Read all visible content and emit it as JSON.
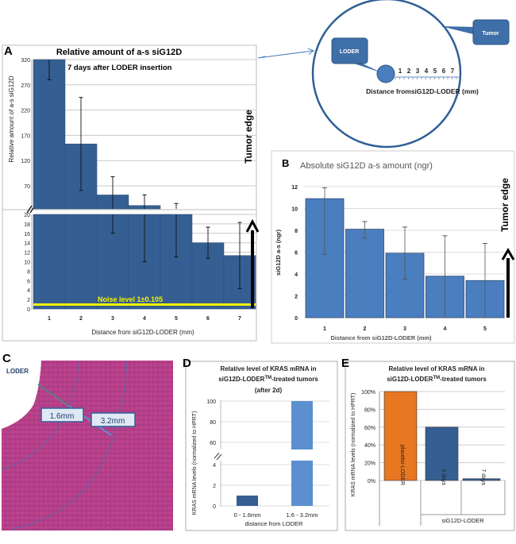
{
  "colors": {
    "bar_dark": "#355f93",
    "bar_mid": "#4a7ebf",
    "bar_light": "#5b8fd0",
    "orange": "#e87722",
    "noise": "#f5f200",
    "tissue": "#b8307a"
  },
  "diagram": {
    "loder_label": "LODER",
    "tumor_label": "Tumor",
    "ruler_ticks": [
      "1",
      "2",
      "3",
      "4",
      "5",
      "6",
      "7"
    ],
    "caption": "Distance fromsiG12D-LODER (mm)"
  },
  "panel_c": {
    "letter": "C",
    "loder_label": "LODER",
    "dist1": "1.6mm",
    "dist2": "3.2mm"
  },
  "chart_data": [
    {
      "letter": "A",
      "type": "bar",
      "title": "Relative amount of a-s siG12D",
      "subtitle": "7 days after LODER insertion",
      "ylabel": "Relative amount of a-s siG12D",
      "xlabel": "Distance from siG12D-LODER (mm)",
      "categories": [
        "1",
        "2",
        "3",
        "4",
        "5",
        "6",
        "7"
      ],
      "values": [
        330,
        153,
        52,
        31,
        23,
        14,
        11.3
      ],
      "errors": [
        50,
        92,
        36,
        21,
        12,
        3.3,
        7
      ],
      "y_axis_broken": true,
      "yticks_upper": [
        "320",
        "270",
        "220",
        "170",
        "120",
        "70"
      ],
      "yticks_lower": [
        "20",
        "18",
        "16",
        "14",
        "12",
        "10",
        "8",
        "6",
        "4",
        "2",
        "0"
      ],
      "ylim_upper": [
        24,
        320
      ],
      "ylim_lower": [
        0,
        20
      ],
      "noise_label": "Noise level 1±0.105",
      "noise_level": 1,
      "annotation": "Tumor edge",
      "grid": true
    },
    {
      "letter": "B",
      "type": "bar",
      "title": "Absolute siG12D a-s amount (ngr)",
      "ylabel": "siG12D a-s (ngr)",
      "xlabel": "Distance from siG12D-LODER (mm)",
      "categories": [
        "1",
        "2",
        "3",
        "4",
        "5"
      ],
      "values": [
        10.9,
        8.1,
        5.9,
        3.8,
        3.4
      ],
      "error_low": [
        5.8,
        7.3,
        3.5,
        0,
        0
      ],
      "error_high": [
        11.9,
        8.8,
        8.3,
        7.5,
        6.8
      ],
      "yticks": [
        "0",
        "2",
        "4",
        "6",
        "8",
        "10",
        "12"
      ],
      "ylim": [
        0,
        12
      ],
      "annotation": "Tumor edge",
      "grid": true
    },
    {
      "letter": "D",
      "type": "bar",
      "title_lines": [
        "Relative level of KRAS mRNA in",
        "siG12D-LODER",
        "TM",
        "-treated tumors",
        "(after 2d)"
      ],
      "ylabel": "KRAS mRNA levels (normalized to HPRT)",
      "xlabel": "distance from LODER",
      "categories": [
        "0 - 1.6mm",
        "1.6 - 3.2mm"
      ],
      "values": [
        1,
        100
      ],
      "y_axis_broken": true,
      "yticks_upper": [
        "100",
        "80",
        "60"
      ],
      "yticks_lower": [
        "4",
        "2",
        "0"
      ],
      "grid": true
    },
    {
      "letter": "E",
      "type": "bar",
      "title_lines": [
        "Relative level of KRAS mRNA in",
        "siG12D-LODER",
        "TM",
        "-treated tumors"
      ],
      "ylabel": "KRAS mRNA levels (normalized to HPRT)",
      "categories": [
        "placebo-LODER",
        "2 days",
        "7 days"
      ],
      "group_label": "siG12D-LODER",
      "values": [
        100,
        60,
        2
      ],
      "yticks": [
        "0%",
        "20%",
        "40%",
        "60%",
        "80%",
        "100%"
      ],
      "ylim": [
        0,
        100
      ],
      "grid": true
    }
  ]
}
